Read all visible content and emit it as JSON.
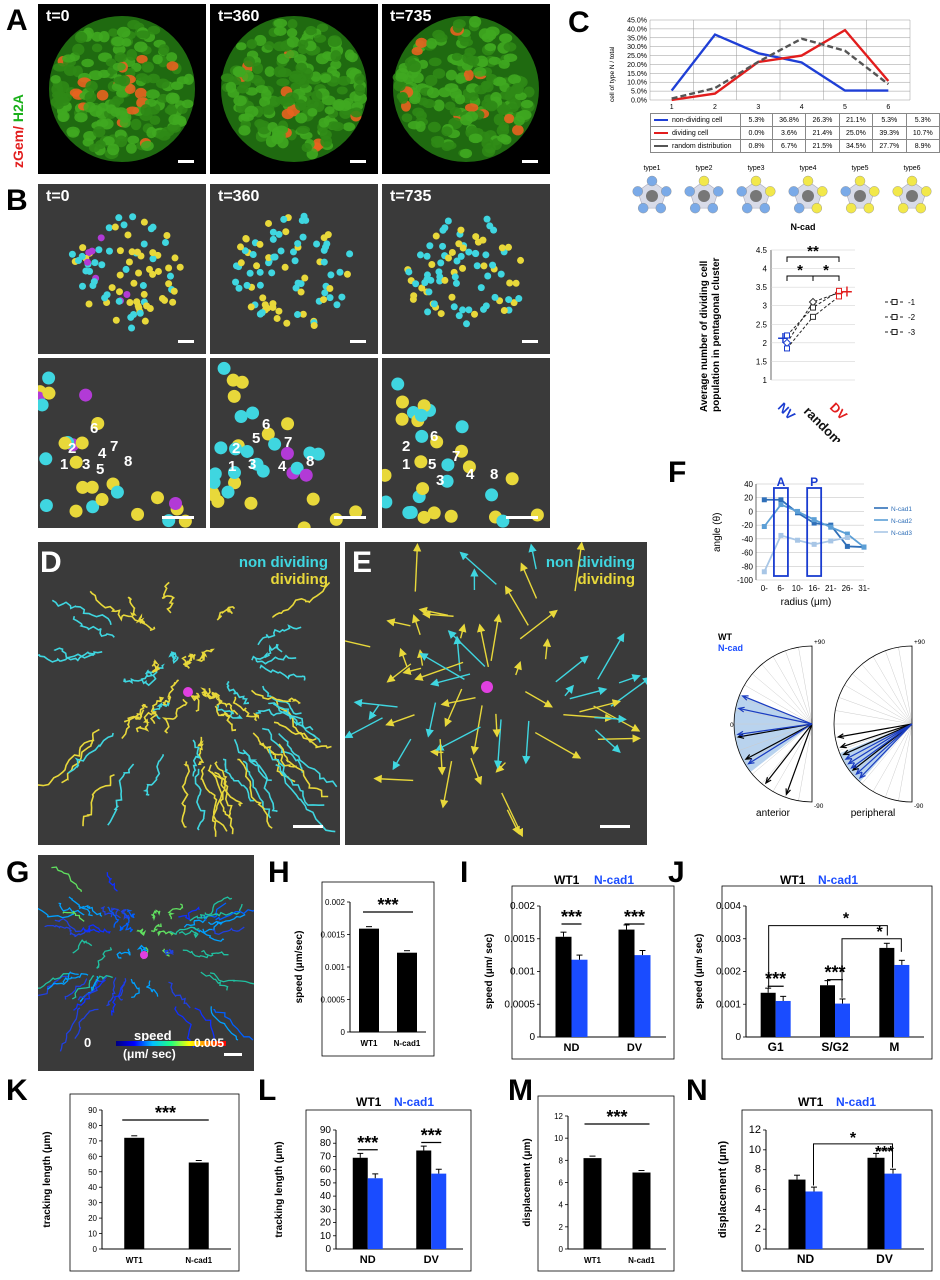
{
  "panels": {
    "A": "A",
    "B": "B",
    "C": "C",
    "D": "D",
    "E": "E",
    "F": "F",
    "G": "G",
    "H": "H",
    "I": "I",
    "J": "J",
    "K": "K",
    "L": "L",
    "M": "M",
    "N": "N"
  },
  "panel_a": {
    "ylabel_red": "zGem/",
    "ylabel_green": " H2A",
    "frames": [
      "t=0",
      "t=360",
      "t=735"
    ]
  },
  "panel_b": {
    "frames": [
      "t=0",
      "t=360",
      "t=735"
    ],
    "zoom_numbers": [
      [
        "6",
        "2",
        "1",
        "3",
        "4",
        "7",
        "5",
        "8"
      ],
      [
        "6",
        "2",
        "5",
        "7",
        "1",
        "3",
        "4",
        "8"
      ],
      [
        "6",
        "2",
        "7",
        "1",
        "5",
        "3",
        "4",
        "8"
      ]
    ]
  },
  "panel_c": {
    "ylabel": "cell of type N / total",
    "yticks": [
      "0.0%",
      "5.0%",
      "10.0%",
      "15.0%",
      "20.0%",
      "25.0%",
      "30.0%",
      "35.0%",
      "40.0%",
      "45.0%"
    ],
    "categories": [
      "1",
      "2",
      "3",
      "4",
      "5",
      "6"
    ],
    "table": [
      {
        "name": "non-dividing cell",
        "color": "#1f3fd6",
        "values": [
          "5.3%",
          "36.8%",
          "26.3%",
          "21.1%",
          "5.3%",
          "5.3%"
        ]
      },
      {
        "name": "dividing cell",
        "color": "#e21d1d",
        "values": [
          "0.0%",
          "3.6%",
          "21.4%",
          "25.0%",
          "39.3%",
          "10.7%"
        ]
      },
      {
        "name": "random distribution",
        "color": "#555555",
        "values": [
          "0.8%",
          "6.7%",
          "21.5%",
          "34.5%",
          "27.7%",
          "8.9%"
        ]
      }
    ],
    "types": [
      "type1",
      "type2",
      "type3",
      "type4",
      "type5",
      "type6"
    ],
    "ncad_title": "N-cad",
    "ncad_ylabel_1": "Average number of dividing cell",
    "ncad_ylabel_2": "population in pentagonal cluster",
    "ncad_yticks": [
      "1",
      "1.5",
      "2",
      "2.5",
      "3",
      "3.5",
      "4",
      "4.5"
    ],
    "ncad_xcats": [
      "NV",
      "random",
      "DV"
    ],
    "ncad_legend": [
      "1",
      "2",
      "3"
    ],
    "sig": [
      "**",
      "*",
      "*"
    ]
  },
  "panel_d": {
    "legend1": "non dividing",
    "legend2": "dividing"
  },
  "panel_e": {
    "legend1": "non dividing",
    "legend2": "dividing"
  },
  "panel_f": {
    "ylabel": "angle (θ)",
    "xlabel": "radius (μm)",
    "yticks": [
      "40",
      "20",
      "0",
      "-20",
      "-40",
      "-60",
      "-80",
      "-100"
    ],
    "xcats": [
      "0-",
      "6-",
      "10-",
      "16-",
      "21-",
      "26-",
      "31-"
    ],
    "box_a": "A",
    "box_p": "P",
    "legend": [
      "N-cad1",
      "N-cad2",
      "N-cad3"
    ],
    "series": [
      {
        "name": "N-cad1",
        "values": [
          17,
          17,
          -2,
          -17,
          -20,
          -51,
          -52
        ]
      },
      {
        "name": "N-cad2",
        "values": [
          -22,
          10,
          0,
          -12,
          -23,
          -33,
          -52
        ]
      },
      {
        "name": "N-cad3",
        "values": [
          -88,
          -35,
          -42,
          -48,
          -43,
          -38,
          null
        ]
      }
    ],
    "polar_wt": "WT",
    "polar_ncad": "N-cad",
    "polar_p90": "+90",
    "polar_m90": "-90",
    "polar_zero": "0",
    "polar_anterior": "anterior",
    "polar_peripheral": "peripheral"
  },
  "panel_g": {
    "speed_label": "speed",
    "speed_unit": "(μm/ sec)",
    "min": "0",
    "max": "0.005"
  },
  "panel_h": {
    "ylabel": "speed (μm/sec)",
    "yticks": [
      "0",
      "0.0005",
      "0.001",
      "0.0015",
      "0.002"
    ],
    "ylim": [
      0,
      0.002
    ],
    "categories": [
      "WT1",
      "N-cad1"
    ],
    "values": [
      0.00159,
      0.00122
    ],
    "errors": [
      3e-05,
      2e-05
    ],
    "sig": "***"
  },
  "panel_i": {
    "legend_wt": "WT1",
    "legend_ncad": "N-cad1",
    "ylabel": "speed (μm/ sec)",
    "yticks": [
      "0",
      "0.0005",
      "0.001",
      "0.0015",
      "0.002"
    ],
    "ylim": [
      0,
      0.002
    ],
    "categories": [
      "ND",
      "DV"
    ],
    "series": [
      {
        "name": "WT1",
        "values": [
          0.00153,
          0.00164
        ]
      },
      {
        "name": "N-cad1",
        "values": [
          0.00118,
          0.00125
        ]
      }
    ],
    "sig": [
      "***",
      "***"
    ]
  },
  "panel_j": {
    "legend_wt": "WT1",
    "legend_ncad": "N-cad1",
    "ylabel": "speed (μm/ sec)",
    "yticks": [
      "0",
      "0.001",
      "0.002",
      "0.003",
      "0.004"
    ],
    "ylim": [
      0,
      0.004
    ],
    "categories": [
      "G1",
      "S/G2",
      "M"
    ],
    "series": [
      {
        "name": "WT1",
        "values": [
          0.00135,
          0.00158,
          0.00272
        ]
      },
      {
        "name": "N-cad1",
        "values": [
          0.0011,
          0.00102,
          0.0022
        ]
      }
    ],
    "sig": [
      "***",
      "***",
      "*",
      "*"
    ]
  },
  "panel_k": {
    "ylabel": "tracking length (μm)",
    "yticks": [
      "0",
      "10",
      "20",
      "30",
      "40",
      "50",
      "60",
      "70",
      "80",
      "90"
    ],
    "ylim": [
      0,
      90
    ],
    "categories": [
      "WT1",
      "N-cad1"
    ],
    "values": [
      72,
      56
    ],
    "sig": "***"
  },
  "panel_l": {
    "legend_wt": "WT1",
    "legend_ncad": "N-cad1",
    "ylabel": "tracking length (μm)",
    "yticks": [
      "0",
      "10",
      "20",
      "30",
      "40",
      "50",
      "60",
      "70",
      "80",
      "90"
    ],
    "ylim": [
      0,
      90
    ],
    "categories": [
      "ND",
      "DV"
    ],
    "series": [
      {
        "name": "WT1",
        "values": [
          69,
          74.5
        ]
      },
      {
        "name": "N-cad1",
        "values": [
          53.5,
          57
        ]
      }
    ],
    "sig": [
      "***",
      "***"
    ]
  },
  "panel_m": {
    "ylabel": "displacement (μm)",
    "yticks": [
      "0",
      "2",
      "4",
      "6",
      "8",
      "10",
      "12"
    ],
    "ylim": [
      0,
      12
    ],
    "categories": [
      "WT1",
      "N-cad1"
    ],
    "values": [
      8.2,
      6.9
    ],
    "sig": "***"
  },
  "panel_n": {
    "legend_wt": "WT1",
    "legend_ncad": "N-cad1",
    "ylabel": "displacement (μm)",
    "yticks": [
      "0",
      "2",
      "4",
      "6",
      "8",
      "10",
      "12"
    ],
    "ylim": [
      0,
      12
    ],
    "categories": [
      "ND",
      "DV"
    ],
    "series": [
      {
        "name": "WT1",
        "values": [
          7.0,
          9.2
        ]
      },
      {
        "name": "N-cad1",
        "values": [
          5.8,
          7.6
        ]
      }
    ],
    "sig": [
      "*",
      "***"
    ]
  },
  "colors": {
    "wt": "#000000",
    "ncad": "#1a4cff",
    "cyan": "#3fd6e0",
    "yellow": "#e8d83a",
    "magenta": "#b23ad6"
  }
}
